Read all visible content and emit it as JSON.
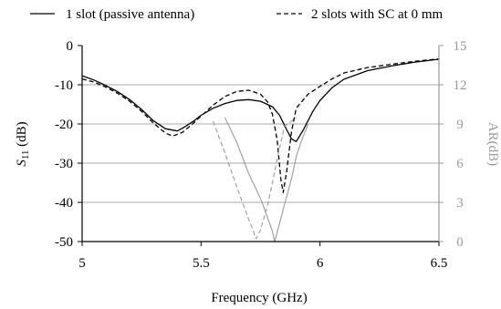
{
  "chart_data": {
    "type": "line",
    "xlabel": "Frequency (GHz)",
    "ylabel": "S11 (dB)",
    "ylabel_main": "S",
    "ylabel_sub": "11",
    "ylabel_unit": " (dB)",
    "y2label": "AR(dB)",
    "xlim": [
      5,
      6.5
    ],
    "ylim": [
      -50,
      0
    ],
    "y2lim": [
      0,
      15
    ],
    "xticks": [
      5,
      5.5,
      6,
      6.5
    ],
    "xtick_labels": [
      "5",
      "5.5",
      "6",
      "6.5"
    ],
    "yticks": [
      0,
      -10,
      -20,
      -30,
      -40,
      -50
    ],
    "ytick_labels": [
      "0",
      "-10",
      "-20",
      "-30",
      "-40",
      "-50"
    ],
    "y2ticks": [
      0,
      3,
      6,
      9,
      12,
      15
    ],
    "y2tick_labels": [
      "0",
      "3",
      "6",
      "9",
      "12",
      "15"
    ],
    "grid": true,
    "legend_position": "top",
    "legend": [
      {
        "label": "1 slot (passive antenna)",
        "style": "solid"
      },
      {
        "label": "2 slots with SC at 0 mm",
        "style": "dashed"
      }
    ],
    "colors": {
      "s11": "#000000",
      "ar": "#9a9a9a",
      "grid": "#8c8c8c"
    },
    "series": [
      {
        "name": "1 slot (passive antenna)",
        "axis": "left",
        "style": "solid",
        "x": [
          5.0,
          5.05,
          5.1,
          5.15,
          5.2,
          5.25,
          5.3,
          5.35,
          5.4,
          5.43,
          5.47,
          5.5,
          5.55,
          5.6,
          5.65,
          5.7,
          5.75,
          5.8,
          5.83,
          5.86,
          5.88,
          5.9,
          5.93,
          5.97,
          6.0,
          6.05,
          6.1,
          6.2,
          6.3,
          6.4,
          6.5
        ],
        "y": [
          -7.7,
          -8.8,
          -10.2,
          -11.8,
          -13.8,
          -16.3,
          -19.2,
          -21.2,
          -21.8,
          -20.8,
          -19.2,
          -17.8,
          -16.0,
          -14.8,
          -14.0,
          -13.8,
          -14.2,
          -15.6,
          -17.8,
          -21.5,
          -23.8,
          -24.5,
          -21.5,
          -16.8,
          -14.0,
          -10.8,
          -8.6,
          -6.4,
          -5.2,
          -4.2,
          -3.5
        ]
      },
      {
        "name": "2 slots with SC at 0 mm",
        "axis": "left",
        "style": "dashed",
        "x": [
          5.0,
          5.05,
          5.1,
          5.15,
          5.2,
          5.25,
          5.3,
          5.35,
          5.38,
          5.42,
          5.46,
          5.5,
          5.55,
          5.6,
          5.65,
          5.7,
          5.75,
          5.78,
          5.8,
          5.82,
          5.835,
          5.845,
          5.86,
          5.88,
          5.9,
          5.95,
          6.0,
          6.05,
          6.1,
          6.2,
          6.3,
          6.4,
          6.5
        ],
        "y": [
          -8.5,
          -9.3,
          -10.6,
          -12.2,
          -14.2,
          -16.8,
          -19.8,
          -22.3,
          -23.1,
          -22.2,
          -20.2,
          -18.0,
          -15.2,
          -13.0,
          -11.7,
          -11.4,
          -12.4,
          -14.4,
          -17.5,
          -24.0,
          -34.0,
          -37.5,
          -32.0,
          -22.0,
          -16.0,
          -12.4,
          -10.4,
          -8.5,
          -7.0,
          -5.6,
          -4.8,
          -4.0,
          -3.4
        ]
      },
      {
        "name": "AR 1 slot (passive antenna)",
        "axis": "right",
        "style": "solid",
        "x": [
          5.6,
          5.65,
          5.7,
          5.75,
          5.78,
          5.8,
          5.81,
          5.82,
          5.85,
          5.88,
          5.9,
          5.92,
          5.95
        ],
        "y": [
          9.5,
          7.6,
          5.2,
          3.3,
          1.8,
          0.8,
          0.0,
          0.7,
          2.8,
          4.8,
          6.5,
          7.6,
          9.0
        ]
      },
      {
        "name": "AR 2 slots with SC at 0 mm",
        "axis": "right",
        "style": "dashed",
        "x": [
          5.55,
          5.6,
          5.65,
          5.7,
          5.72,
          5.73,
          5.75,
          5.78,
          5.8,
          5.82,
          5.85,
          5.9
        ],
        "y": [
          9.2,
          6.8,
          4.2,
          1.7,
          0.8,
          0.2,
          0.9,
          2.8,
          4.5,
          6.3,
          8.8,
          9.5
        ]
      }
    ]
  }
}
